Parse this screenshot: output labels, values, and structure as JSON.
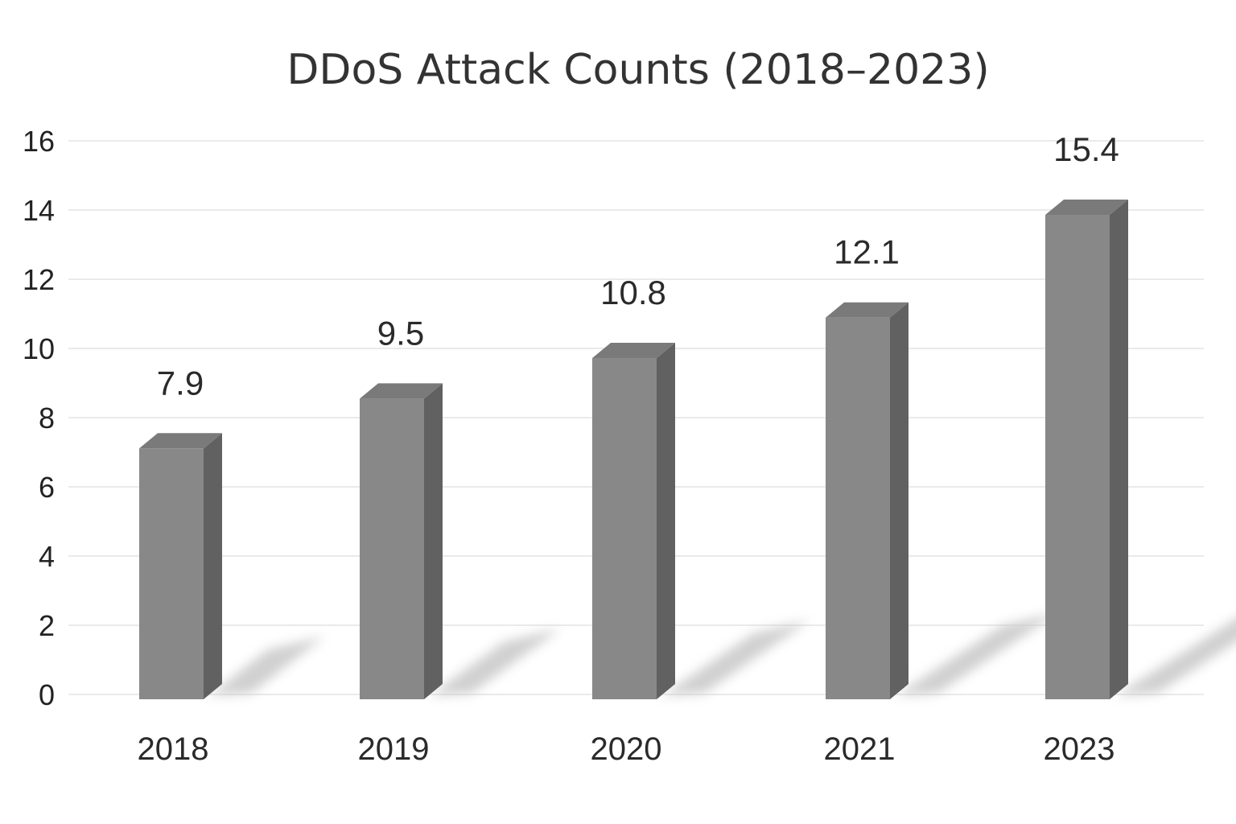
{
  "chart_data": {
    "type": "bar",
    "style": "3d-columns",
    "title": "DDoS Attack Counts (2018–2023)",
    "xlabel": "",
    "ylabel": "",
    "categories": [
      "2018",
      "2019",
      "2020",
      "2021",
      "2023"
    ],
    "series": [
      {
        "values": [
          7.9,
          9.5,
          10.8,
          12.1,
          15.4
        ],
        "data_labels": [
          "7.9",
          "9.5",
          "10.8",
          "12.1",
          "15.4"
        ]
      }
    ],
    "ylim": [
      0,
      16
    ],
    "yticks": [
      0,
      2,
      4,
      6,
      8,
      10,
      12,
      14,
      16
    ],
    "grid": "horizontal",
    "legend": "none",
    "colors": {
      "bar_front": "#888888",
      "bar_side": "#616161",
      "bar_top": "#7a7a7a",
      "shadow": "#c8c8c8",
      "grid": "#e3e3e3",
      "text": "#2a2a2a"
    }
  }
}
